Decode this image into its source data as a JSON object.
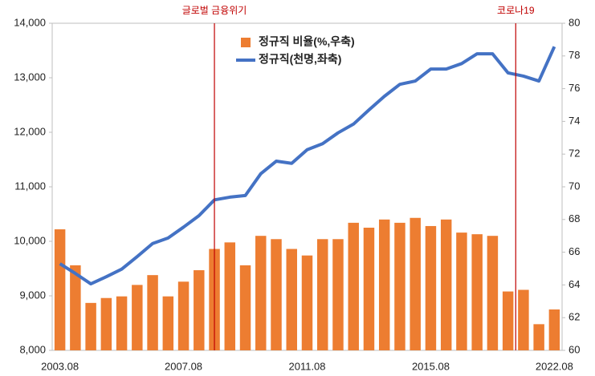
{
  "chart_data": {
    "type": "combo",
    "annotations": [
      "글로벌 금융위기",
      "코로나19"
    ],
    "categories": [
      "2003.08",
      null,
      null,
      null,
      null,
      null,
      null,
      null,
      "2007.08",
      null,
      null,
      null,
      null,
      null,
      null,
      null,
      "2011.08",
      null,
      null,
      null,
      null,
      null,
      null,
      null,
      "2015.08",
      null,
      null,
      null,
      null,
      null,
      null,
      null,
      "2022.08"
    ],
    "series": [
      {
        "name": "정규직 비율(%,우축)",
        "type": "bar",
        "axis": "y2",
        "color": "#ed7d31",
        "values": [
          67.4,
          65.2,
          62.9,
          63.2,
          63.3,
          64.0,
          64.6,
          63.3,
          64.2,
          64.9,
          66.2,
          66.6,
          65.2,
          67.0,
          66.8,
          66.2,
          65.8,
          66.8,
          66.8,
          67.8,
          67.5,
          68.0,
          67.8,
          68.1,
          67.6,
          68.0,
          67.2,
          67.1,
          67.0,
          63.6,
          63.7,
          61.6,
          62.5
        ]
      },
      {
        "name": "정규직(천명,좌축)",
        "type": "line",
        "color": "#4472c4",
        "values": [
          9590,
          9410,
          9220,
          9350,
          9490,
          9720,
          9960,
          10060,
          10260,
          10470,
          10760,
          10810,
          10840,
          11240,
          11470,
          11430,
          11680,
          11790,
          11990,
          12150,
          12410,
          12660,
          12880,
          12940,
          13160,
          13160,
          13260,
          13440,
          13440,
          13090,
          13030,
          12940,
          13570
        ]
      }
    ],
    "ylim": [
      8000,
      14000
    ],
    "yticks": [
      {
        "value": 8000,
        "label": "8,000"
      },
      {
        "value": 9000,
        "label": "9,000"
      },
      {
        "value": 10000,
        "label": "10,000"
      },
      {
        "value": 11000,
        "label": "11,000"
      },
      {
        "value": 12000,
        "label": "12,000"
      },
      {
        "value": 13000,
        "label": "13,000"
      },
      {
        "value": 14000,
        "label": "14,000"
      }
    ],
    "y2lim": [
      60,
      80
    ],
    "y2ticks": [
      60,
      62,
      64,
      66,
      68,
      70,
      72,
      74,
      76,
      78,
      80
    ],
    "grid": false
  }
}
